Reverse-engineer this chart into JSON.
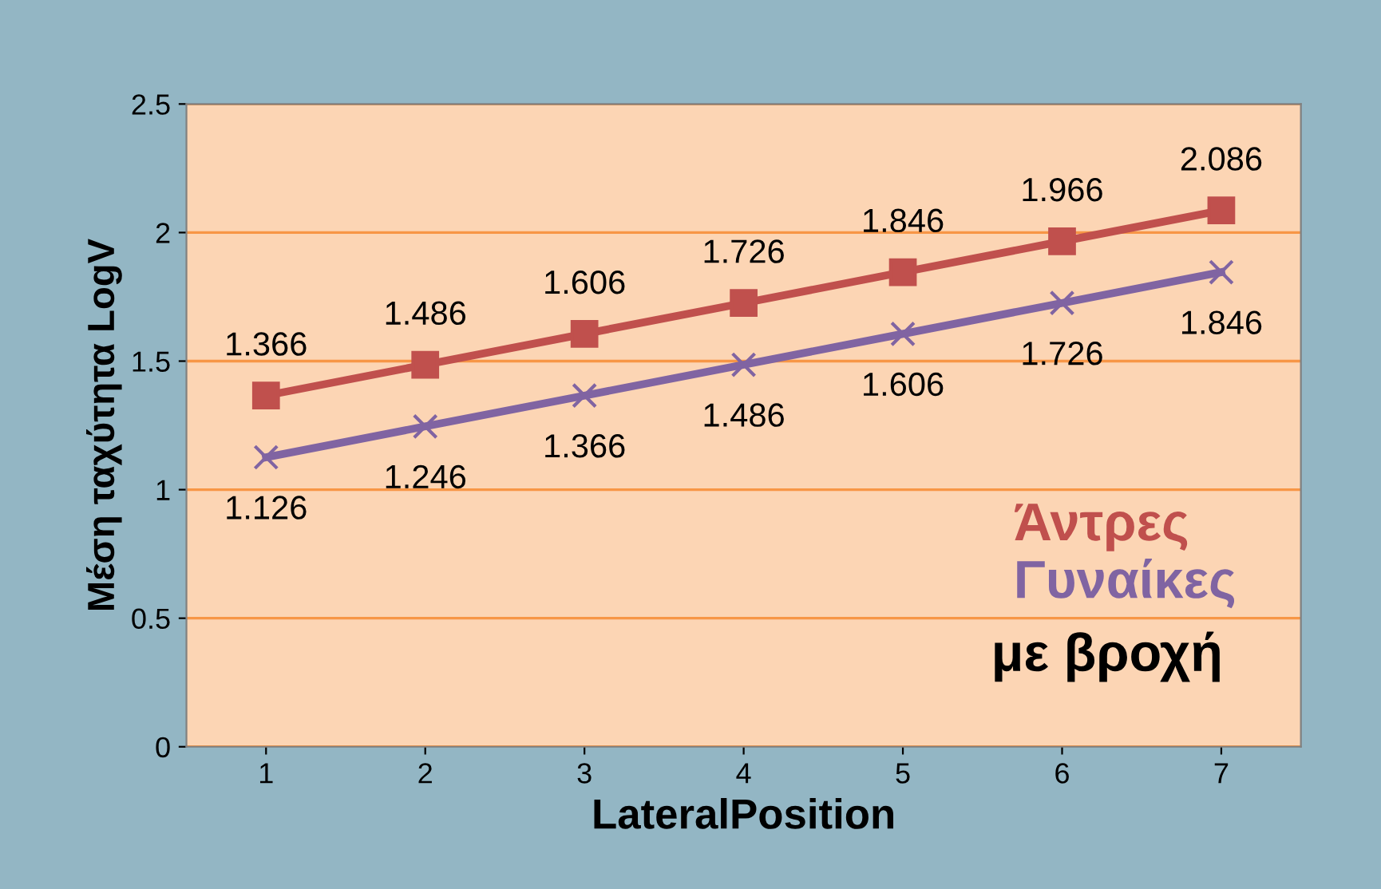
{
  "chart_data": {
    "type": "line",
    "xlabel": "LateralPosition",
    "ylabel": "Μέση ταχύτητα LogV",
    "categories": [
      "1",
      "2",
      "3",
      "4",
      "5",
      "6",
      "7"
    ],
    "series": [
      {
        "name": "Άντρες",
        "color": "#c0504d",
        "marker": "square",
        "values": [
          1.366,
          1.486,
          1.606,
          1.726,
          1.846,
          1.966,
          2.086
        ]
      },
      {
        "name": "Γυναίκες",
        "color": "#8064a2",
        "marker": "cross",
        "values": [
          1.126,
          1.246,
          1.366,
          1.486,
          1.606,
          1.726,
          1.846
        ]
      }
    ],
    "ylim": [
      0,
      2.5
    ],
    "yticks": [
      0,
      0.5,
      1,
      1.5,
      2,
      2.5
    ],
    "grid": "y",
    "legend": "bottom right",
    "data_labels": true,
    "annotations": [
      "με βροχή"
    ]
  }
}
